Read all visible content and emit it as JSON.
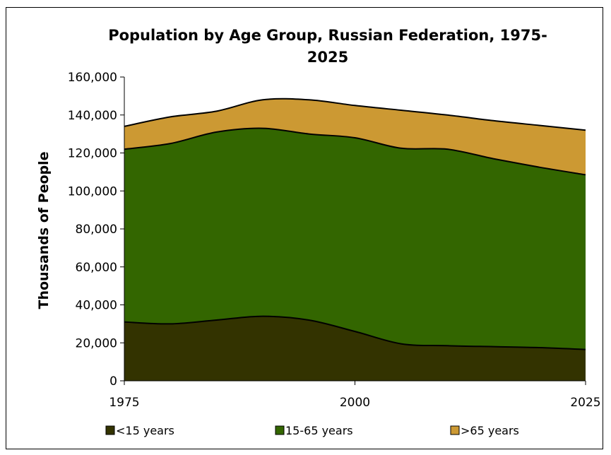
{
  "chart_data": {
    "type": "area",
    "stacked": true,
    "title_line1": "Population by Age Group, Russian Federation, 1975-",
    "title_line2": "2025",
    "ylabel": "Thousands of People",
    "xlabel": "",
    "x": [
      1975,
      1980,
      1985,
      1990,
      1995,
      2000,
      2005,
      2010,
      2015,
      2020,
      2025
    ],
    "xlim": [
      1975,
      2025
    ],
    "x_ticks": [
      "1975",
      "2000",
      "2025"
    ],
    "ylim": [
      0,
      160000
    ],
    "y_ticks": [
      "0",
      "20,000",
      "40,000",
      "60,000",
      "80,000",
      "100,000",
      "120,000",
      "140,000",
      "160,000"
    ],
    "grid": false,
    "legend_position": "bottom",
    "series": [
      {
        "name": "<15 years",
        "color": "#333300",
        "values": [
          31000,
          30000,
          32000,
          34000,
          32000,
          26000,
          19500,
          18500,
          18000,
          17500,
          16500
        ]
      },
      {
        "name": "15-65 years",
        "color": "#336600",
        "values": [
          91000,
          95000,
          99000,
          99000,
          98000,
          102000,
          103000,
          103500,
          99000,
          95000,
          92000
        ]
      },
      {
        "name": ">65 years",
        "color": "#CC9933",
        "values": [
          12000,
          14000,
          11000,
          15000,
          18000,
          17000,
          20000,
          18000,
          20000,
          22000,
          23500
        ]
      }
    ]
  }
}
